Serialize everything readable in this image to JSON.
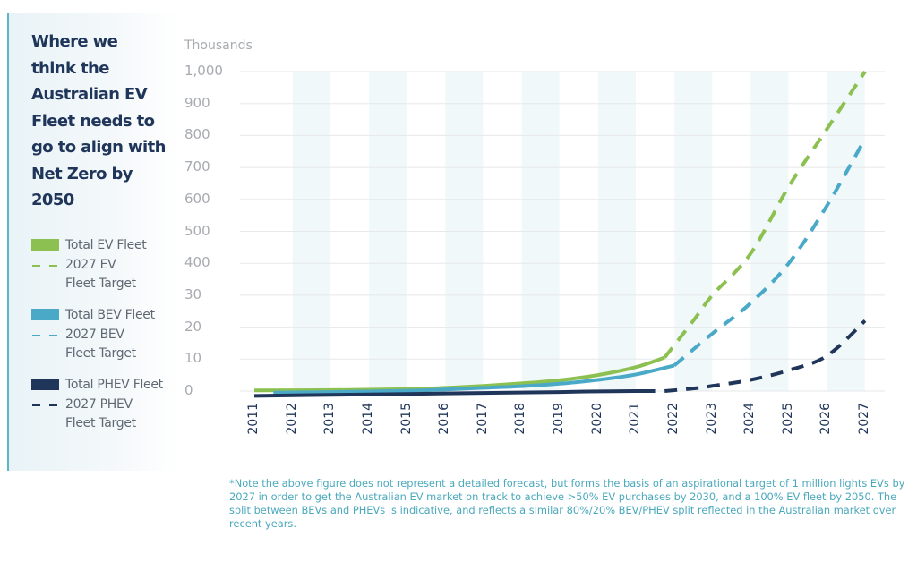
{
  "panel": {
    "title": "Where we think the Australian EV Fleet needs to go to align with Net Zero by 2050"
  },
  "legend": [
    {
      "label": "Total EV Fleet",
      "style": "solid",
      "color": "#8cc152"
    },
    {
      "label_line1": "2027 EV",
      "label_line2": "Fleet Target",
      "style": "dashed",
      "color": "#8cc152"
    },
    {
      "label": "Total BEV Fleet",
      "style": "solid",
      "color": "#4aa9c7"
    },
    {
      "label_line1": "2027 BEV",
      "label_line2": "Fleet Target",
      "style": "dashed",
      "color": "#4aa9c7"
    },
    {
      "label": "Total PHEV Fleet",
      "style": "solid",
      "color": "#1f3559"
    },
    {
      "label_line1": "2027 PHEV",
      "label_line2": "Fleet Target",
      "style": "dashed",
      "color": "#1f3559"
    }
  ],
  "footnote": "*Note the above figure does not represent a detailed forecast, but forms the basis of an aspirational target of 1 million lights EVs by 2027 in order to  get the Australian EV market on track to achieve >50% EV purchases by 2030, and a 100% EV fleet by 2050. The split between BEVs and PHEVs is indicative, and reflects a similar 80%/20% BEV/PHEV split reflected in the Australian market over recent years.",
  "chart_data": {
    "type": "line",
    "title": "Where we think the Australian EV Fleet needs to go to align with Net Zero by 2050",
    "xlabel": "",
    "ylabel": "Thousands",
    "x": [
      "2011",
      "2012",
      "2013",
      "2014",
      "2015",
      "2016",
      "2017",
      "2018",
      "2019",
      "2020",
      "2021",
      "2022",
      "2023",
      "2024",
      "2025",
      "2026",
      "2027"
    ],
    "y_tick_labels": [
      "0",
      "10",
      "20",
      "30",
      "400",
      "500",
      "600",
      "700",
      "800",
      "900",
      "1,000"
    ],
    "y_tick_values": [
      0,
      10,
      20,
      30,
      400,
      500,
      600,
      700,
      800,
      900,
      1000
    ],
    "ylim": [
      0,
      1000
    ],
    "grid": "horizontal",
    "legend_position": "left",
    "series": [
      {
        "name": "Total EV Fleet",
        "style": "solid",
        "color": "#8cc152",
        "points": [
          [
            2011,
            0.2
          ],
          [
            2013,
            0.3
          ],
          [
            2015,
            0.6
          ],
          [
            2016,
            1.0
          ],
          [
            2017,
            1.6
          ],
          [
            2018,
            2.4
          ],
          [
            2019,
            3.4
          ],
          [
            2020,
            5.0
          ],
          [
            2021,
            7.5
          ],
          [
            2021.75,
            10.5
          ]
        ]
      },
      {
        "name": "2027 EV Fleet Target",
        "style": "dashed",
        "color": "#8cc152",
        "points": [
          [
            2021.75,
            10.5
          ],
          [
            2022.5,
            22
          ],
          [
            2023,
            30
          ],
          [
            2024,
            430
          ],
          [
            2025,
            640
          ],
          [
            2026,
            820
          ],
          [
            2027,
            1000
          ]
        ]
      },
      {
        "name": "Total BEV Fleet",
        "style": "solid",
        "color": "#4aa9c7",
        "points": [
          [
            2011.5,
            -0.5
          ],
          [
            2013,
            -0.3
          ],
          [
            2015,
            0.1
          ],
          [
            2016,
            0.5
          ],
          [
            2017,
            1.0
          ],
          [
            2018,
            1.5
          ],
          [
            2019,
            2.3
          ],
          [
            2020,
            3.5
          ],
          [
            2021,
            5.2
          ],
          [
            2022,
            8.0
          ]
        ]
      },
      {
        "name": "2027 BEV Fleet Target",
        "style": "dashed",
        "color": "#4aa9c7",
        "points": [
          [
            2022,
            8.0
          ],
          [
            2023,
            18
          ],
          [
            2024,
            27.5
          ],
          [
            2025,
            400
          ],
          [
            2026,
            580
          ],
          [
            2027,
            790
          ]
        ]
      },
      {
        "name": "Total PHEV Fleet",
        "style": "solid",
        "color": "#1f3559",
        "points": [
          [
            2011,
            -1.5
          ],
          [
            2013,
            -1.2
          ],
          [
            2015,
            -0.9
          ],
          [
            2017,
            -0.6
          ],
          [
            2019,
            -0.3
          ],
          [
            2020,
            -0.1
          ],
          [
            2021,
            0.0
          ],
          [
            2021.5,
            0.0
          ]
        ]
      },
      {
        "name": "2027 PHEV Fleet Target",
        "style": "dashed",
        "color": "#1f3559",
        "points": [
          [
            2021.75,
            0.0
          ],
          [
            2022.5,
            0.8
          ],
          [
            2023,
            1.6
          ],
          [
            2024,
            3.5
          ],
          [
            2025,
            6.5
          ],
          [
            2026,
            11
          ],
          [
            2027,
            22
          ]
        ]
      }
    ]
  }
}
